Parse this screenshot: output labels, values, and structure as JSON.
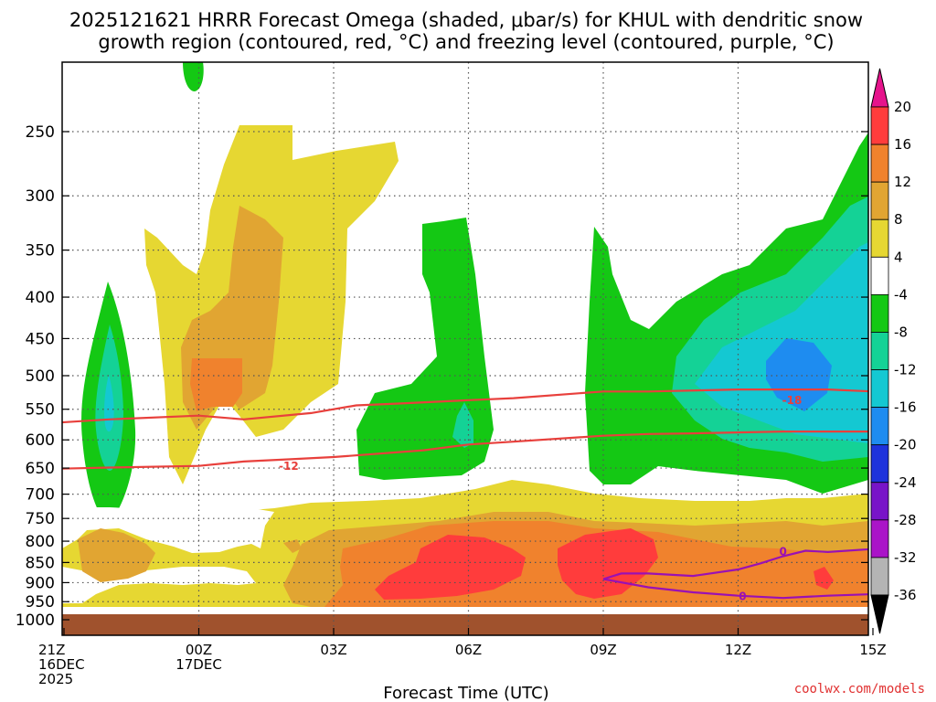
{
  "chart_data": {
    "type": "contour",
    "title_line1": "2025121621 HRRR Forecast Omega (shaded, μbar/s) for KHUL with dendritic snow",
    "title_line2": "growth region (contoured, red, °C) and freezing level (contoured, purple, °C)",
    "xlabel": "Forecast Time (UTC)",
    "ylabel": "",
    "credit": "coolwx.com/models",
    "x_hours": [
      0,
      3,
      6,
      9,
      12,
      15,
      18
    ],
    "x_labels": [
      [
        "21Z",
        "16DEC",
        "2025"
      ],
      [
        "00Z",
        "17DEC"
      ],
      [
        "03Z"
      ],
      [
        "06Z"
      ],
      [
        "09Z"
      ],
      [
        "12Z"
      ],
      [
        "15Z"
      ]
    ],
    "y_levels": [
      250,
      300,
      350,
      400,
      450,
      500,
      550,
      600,
      650,
      700,
      750,
      800,
      850,
      900,
      950,
      1000
    ],
    "y_labels": [
      "250",
      "300",
      "350",
      "400",
      "450",
      "500",
      "550",
      "600",
      "650",
      "700",
      "750",
      "800",
      "850",
      "900",
      "950",
      "1000"
    ],
    "xlim": [
      0,
      18
    ],
    "ylim_hpa": [
      200,
      1000
    ],
    "y_scale": "log-pressure",
    "grid": true,
    "colorbar": {
      "ticks": [
        "20",
        "16",
        "12",
        "8",
        "4",
        "-4",
        "-8",
        "-12",
        "-16",
        "-20",
        "-24",
        "-28",
        "-32",
        "-36"
      ],
      "bins": [
        {
          "range": "16 to 20",
          "color": "#ff3c3c"
        },
        {
          "range": "12 to 16",
          "color": "#f0822d"
        },
        {
          "range": "8 to 12",
          "color": "#e1a532"
        },
        {
          "range": "4 to 8",
          "color": "#e6d732"
        },
        {
          "range": "-4 to 4",
          "color": "#ffffff"
        },
        {
          "range": "-8 to -4",
          "color": "#14c814"
        },
        {
          "range": "-12 to -8",
          "color": "#14d296"
        },
        {
          "range": "-16 to -12",
          "color": "#14c8d2"
        },
        {
          "range": "-20 to -16",
          "color": "#1e8cf0"
        },
        {
          "range": "-24 to -20",
          "color": "#1e32dc"
        },
        {
          "range": "-28 to -24",
          "color": "#7814c8"
        },
        {
          "range": "-32 to -28",
          "color": "#aa14c8"
        },
        {
          "range": "-36 to -32",
          "color": "#b4b4b4"
        }
      ],
      "over_color": "#e6148c",
      "under_color": "#000000"
    },
    "red_contours": [
      {
        "label": "-18",
        "label_at": [
          16.2,
          535
        ],
        "points": [
          [
            -0.5,
            573
          ],
          [
            1,
            566
          ],
          [
            3,
            560
          ],
          [
            4,
            566
          ],
          [
            5.5,
            556
          ],
          [
            6.5,
            544
          ],
          [
            7.5,
            541
          ],
          [
            9,
            536
          ],
          [
            10,
            533
          ],
          [
            12,
            523
          ],
          [
            13,
            523
          ],
          [
            15,
            520
          ],
          [
            17,
            520
          ],
          [
            18,
            523
          ]
        ]
      },
      {
        "label": "-12",
        "label_at": [
          5.0,
          645
        ],
        "points": [
          [
            -0.5,
            652
          ],
          [
            1,
            649
          ],
          [
            3,
            646
          ],
          [
            4,
            638
          ],
          [
            5,
            634
          ],
          [
            6,
            630
          ],
          [
            8,
            618
          ],
          [
            9,
            608
          ],
          [
            10,
            603
          ],
          [
            12,
            593
          ],
          [
            13,
            590
          ],
          [
            14,
            589
          ],
          [
            16,
            586
          ],
          [
            18,
            586
          ]
        ]
      }
    ],
    "purple_contours": [
      {
        "label": "0",
        "label_at": [
          16,
          822
        ],
        "points": [
          [
            12,
            891
          ],
          [
            12.4,
            877
          ],
          [
            13,
            877
          ],
          [
            14,
            883
          ],
          [
            15,
            867
          ],
          [
            15.5,
            852
          ],
          [
            16,
            835
          ],
          [
            16.5,
            822
          ],
          [
            17,
            825
          ],
          [
            18,
            818
          ]
        ]
      },
      {
        "label": "0",
        "label_at": [
          15.1,
          934
        ],
        "points": [
          [
            12,
            891
          ],
          [
            13,
            912
          ],
          [
            14,
            925
          ],
          [
            15,
            934
          ],
          [
            16,
            940
          ],
          [
            17,
            934
          ],
          [
            18,
            930
          ]
        ]
      }
    ]
  }
}
